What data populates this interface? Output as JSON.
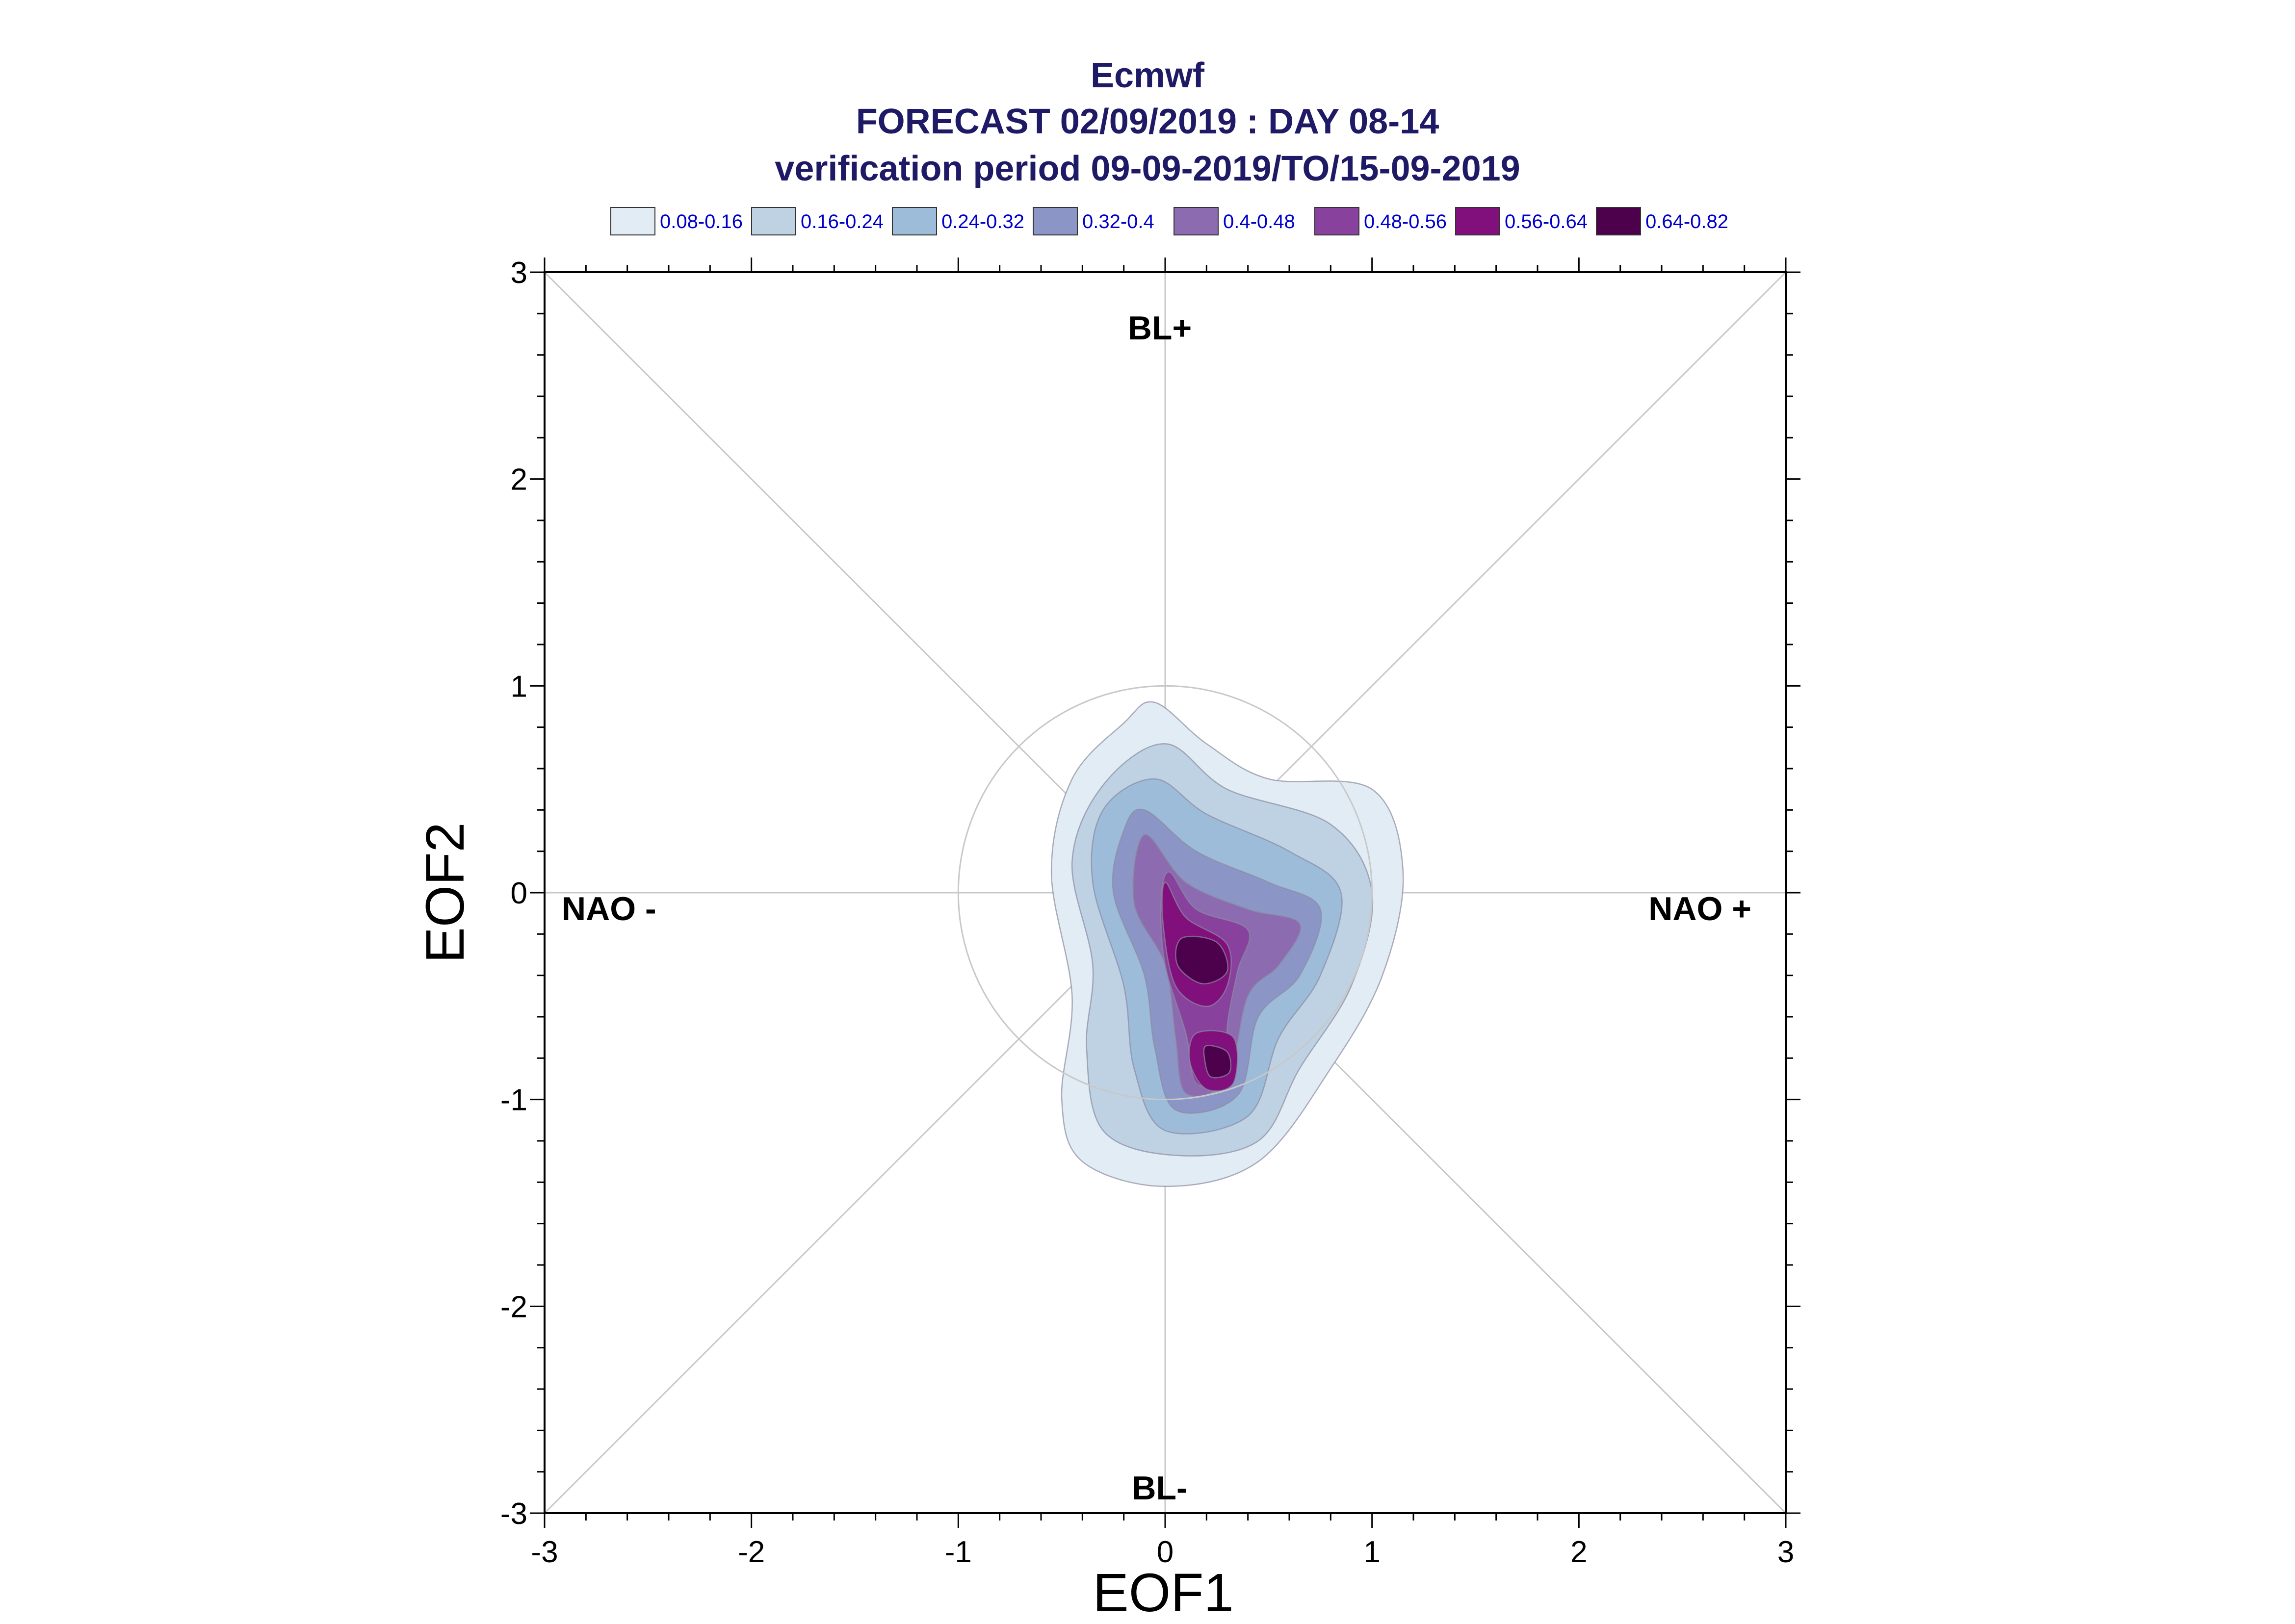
{
  "chart_data": {
    "type": "contour",
    "title": "Ecmwf",
    "subtitle1": "FORECAST 02/09/2019 : DAY 08-14",
    "subtitle2": "verification period 09-09-2019/TO/15-09-2019",
    "xlabel": "EOF1",
    "ylabel": "EOF2",
    "xlim": [
      -3,
      3
    ],
    "ylim": [
      -3,
      3
    ],
    "xticks": [
      "-3",
      "-2",
      "-1",
      "0",
      "1",
      "2",
      "3"
    ],
    "yticks": [
      "3",
      "2",
      "1",
      "0",
      "-1",
      "-2",
      "-3"
    ],
    "regimes": {
      "top": "BL+",
      "bottom": "BL-",
      "left": "NAO -",
      "right": "NAO +"
    },
    "reference_circle_radius": 1,
    "legend": [
      {
        "label": "0.08-0.16",
        "color": "#e2ecf4"
      },
      {
        "label": "0.16-0.24",
        "color": "#bed2e4"
      },
      {
        "label": "0.24-0.32",
        "color": "#9cbcda"
      },
      {
        "label": "0.32-0.4",
        "color": "#8c96c6"
      },
      {
        "label": "0.4-0.48",
        "color": "#8c6bb1"
      },
      {
        "label": "0.48-0.56",
        "color": "#88419d"
      },
      {
        "label": "0.56-0.64",
        "color": "#810f7c"
      },
      {
        "label": "0.64-0.82",
        "color": "#4d004b"
      }
    ],
    "contours": [
      {
        "level": "0.08-0.16",
        "points": [
          [
            -0.05,
            0.92
          ],
          [
            0.2,
            0.72
          ],
          [
            0.5,
            0.55
          ],
          [
            1.0,
            0.5
          ],
          [
            1.15,
            0.1
          ],
          [
            1.05,
            -0.4
          ],
          [
            0.8,
            -0.85
          ],
          [
            0.45,
            -1.3
          ],
          [
            0.0,
            -1.42
          ],
          [
            -0.4,
            -1.3
          ],
          [
            -0.5,
            -1.0
          ],
          [
            -0.45,
            -0.5
          ],
          [
            -0.55,
            0.1
          ],
          [
            -0.45,
            0.55
          ],
          [
            -0.2,
            0.82
          ]
        ]
      },
      {
        "level": "0.16-0.24",
        "points": [
          [
            0.0,
            0.72
          ],
          [
            0.3,
            0.5
          ],
          [
            0.8,
            0.33
          ],
          [
            1.0,
            0.0
          ],
          [
            0.9,
            -0.45
          ],
          [
            0.65,
            -0.85
          ],
          [
            0.45,
            -1.2
          ],
          [
            0.05,
            -1.27
          ],
          [
            -0.3,
            -1.15
          ],
          [
            -0.38,
            -0.75
          ],
          [
            -0.35,
            -0.35
          ],
          [
            -0.45,
            0.15
          ],
          [
            -0.3,
            0.52
          ]
        ]
      },
      {
        "level": "0.24-0.32",
        "points": [
          [
            -0.05,
            0.55
          ],
          [
            0.2,
            0.38
          ],
          [
            0.6,
            0.2
          ],
          [
            0.85,
            0.0
          ],
          [
            0.75,
            -0.4
          ],
          [
            0.55,
            -0.7
          ],
          [
            0.4,
            -1.08
          ],
          [
            0.0,
            -1.15
          ],
          [
            -0.15,
            -0.85
          ],
          [
            -0.2,
            -0.45
          ],
          [
            -0.35,
            0.05
          ],
          [
            -0.3,
            0.4
          ]
        ]
      },
      {
        "level": "0.32-0.4",
        "points": [
          [
            -0.1,
            0.4
          ],
          [
            0.15,
            0.2
          ],
          [
            0.5,
            0.05
          ],
          [
            0.75,
            -0.08
          ],
          [
            0.65,
            -0.4
          ],
          [
            0.45,
            -0.6
          ],
          [
            0.35,
            -0.98
          ],
          [
            0.05,
            -1.05
          ],
          [
            -0.05,
            -0.75
          ],
          [
            -0.1,
            -0.4
          ],
          [
            -0.25,
            0.0
          ],
          [
            -0.2,
            0.3
          ]
        ]
      },
      {
        "level": "0.4-0.48",
        "points": [
          [
            -0.1,
            0.28
          ],
          [
            0.1,
            0.05
          ],
          [
            0.4,
            -0.08
          ],
          [
            0.65,
            -0.15
          ],
          [
            0.55,
            -0.35
          ],
          [
            0.4,
            -0.5
          ],
          [
            0.3,
            -0.9
          ],
          [
            0.1,
            -0.97
          ],
          [
            0.05,
            -0.7
          ],
          [
            0.0,
            -0.35
          ],
          [
            -0.15,
            -0.05
          ]
        ]
      },
      {
        "level": "0.48-0.56",
        "points": [
          [
            0.02,
            0.1
          ],
          [
            0.15,
            -0.08
          ],
          [
            0.4,
            -0.18
          ],
          [
            0.35,
            -0.38
          ],
          [
            0.3,
            -0.65
          ],
          [
            0.3,
            -0.9
          ],
          [
            0.15,
            -0.92
          ],
          [
            0.1,
            -0.68
          ],
          [
            0.0,
            -0.35
          ],
          [
            -0.02,
            -0.05
          ]
        ]
      },
      {
        "level": "0.56-0.64",
        "points": [
          [
            0.0,
            0.05
          ],
          [
            0.1,
            -0.12
          ],
          [
            0.3,
            -0.25
          ],
          [
            0.3,
            -0.45
          ],
          [
            0.2,
            -0.55
          ],
          [
            0.05,
            -0.45
          ],
          [
            -0.01,
            -0.15
          ]
        ]
      },
      {
        "level": "0.56-0.64",
        "points": [
          [
            0.15,
            -0.68
          ],
          [
            0.33,
            -0.7
          ],
          [
            0.33,
            -0.92
          ],
          [
            0.2,
            -0.95
          ],
          [
            0.12,
            -0.82
          ]
        ]
      },
      {
        "level": "0.64-0.82",
        "points": [
          [
            0.08,
            -0.22
          ],
          [
            0.25,
            -0.24
          ],
          [
            0.3,
            -0.38
          ],
          [
            0.18,
            -0.44
          ],
          [
            0.06,
            -0.35
          ]
        ]
      },
      {
        "level": "0.64-0.82",
        "points": [
          [
            0.2,
            -0.74
          ],
          [
            0.3,
            -0.77
          ],
          [
            0.31,
            -0.87
          ],
          [
            0.22,
            -0.89
          ],
          [
            0.19,
            -0.8
          ]
        ]
      }
    ]
  }
}
